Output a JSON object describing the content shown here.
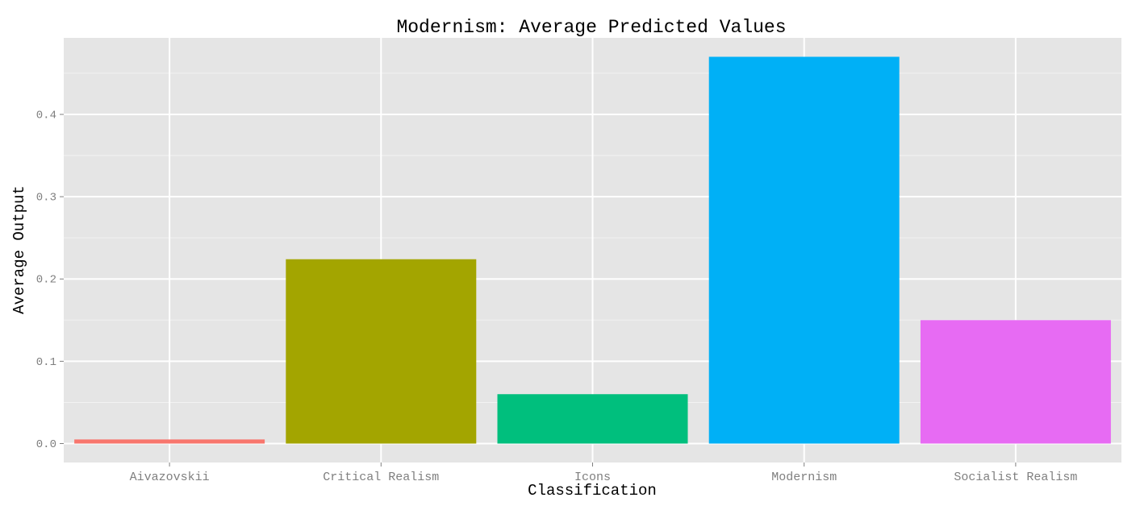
{
  "chart_data": {
    "type": "bar",
    "title": "Modernism: Average Predicted Values",
    "xlabel": "Classification",
    "ylabel": "Average Output",
    "categories": [
      "Aivazovskii",
      "Critical Realism",
      "Icons",
      "Modernism",
      "Socialist Realism"
    ],
    "values": [
      0.005,
      0.224,
      0.06,
      0.47,
      0.15
    ],
    "colors": [
      "#F8766D",
      "#A3A500",
      "#00BF7D",
      "#00B0F6",
      "#E76BF3"
    ],
    "yticks": [
      0.0,
      0.1,
      0.2,
      0.3,
      0.4
    ],
    "ytick_labels": [
      "0.0",
      "0.1",
      "0.2",
      "0.3",
      "0.4"
    ],
    "ylim": [
      -0.023,
      0.493
    ],
    "grid": true,
    "legend": "none",
    "panel_background": "#E5E5E5",
    "grid_color": "#FFFFFF"
  }
}
